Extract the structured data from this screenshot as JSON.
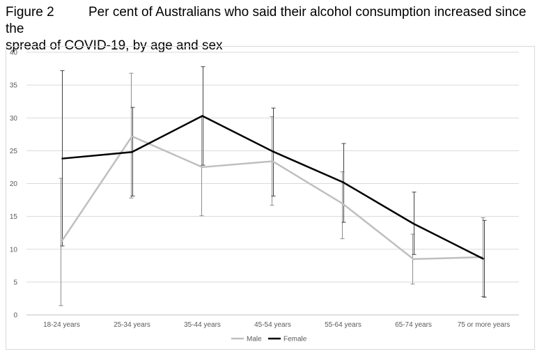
{
  "figure_label": "Figure 2",
  "figure_title_line1": "Per cent of Australians who said their alcohol consumption increased since the",
  "figure_title_line2": "spread of COVID-19, by age and sex",
  "chart_data": {
    "type": "line",
    "title": "Figure 2 Per cent of Australians who said their alcohol consumption increased since the spread of COVID-19, by age and sex",
    "categories": [
      "18-24 years",
      "25-34 years",
      "35-44 years",
      "45-54 years",
      "55-64 years",
      "65-74 years",
      "75 or more years"
    ],
    "ylim": [
      0,
      40
    ],
    "yticks": [
      0,
      5,
      10,
      15,
      20,
      25,
      30,
      35,
      40
    ],
    "grid": true,
    "legend_position": "bottom",
    "series": [
      {
        "name": "Male",
        "color": "#bfbfbf",
        "values": [
          11.2,
          27.2,
          22.5,
          23.4,
          16.9,
          8.5,
          8.8
        ],
        "error_low": [
          1.4,
          17.8,
          15.1,
          16.7,
          11.6,
          4.7,
          2.8
        ],
        "error_high": [
          20.8,
          36.8,
          30.2,
          30.2,
          21.8,
          12.3,
          14.8
        ]
      },
      {
        "name": "Female",
        "color": "#000000",
        "values": [
          23.8,
          24.8,
          30.3,
          24.9,
          20.2,
          13.9,
          8.5
        ],
        "error_low": [
          10.5,
          18.1,
          22.8,
          18.1,
          14.1,
          9.2,
          2.7
        ],
        "error_high": [
          37.2,
          31.6,
          37.8,
          31.5,
          26.1,
          18.7,
          14.4
        ]
      }
    ]
  }
}
